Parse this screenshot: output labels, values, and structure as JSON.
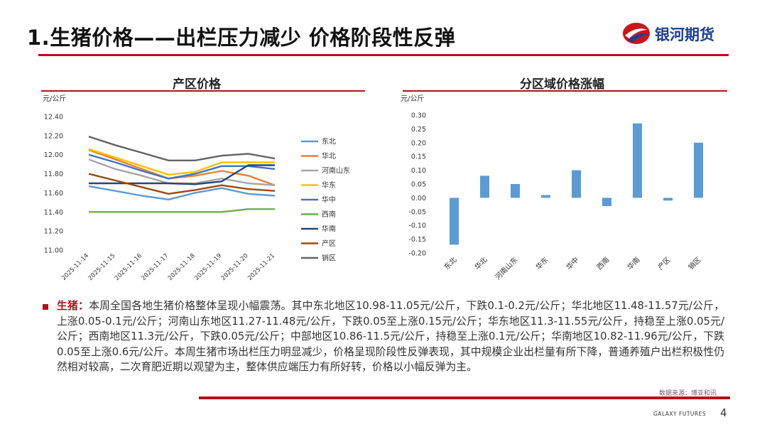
{
  "header": {
    "title": "1.生猪价格——出栏压力减少 价格阶段性反弹",
    "logo_text": "银河期货"
  },
  "chart_data": [
    {
      "type": "line",
      "title": "产区价格",
      "ylabel": "元/公斤",
      "ylim": [
        11.0,
        12.4
      ],
      "yticks": [
        "11.00",
        "11.20",
        "11.40",
        "11.60",
        "11.80",
        "12.00",
        "12.20",
        "12.40"
      ],
      "grid": false,
      "legend_position": "right",
      "x": [
        "2025-11-14",
        "2025-11-15",
        "2025-11-16",
        "2025-11-17",
        "2025-11-18",
        "2025-11-19",
        "2025-11-20",
        "2025-11-21"
      ],
      "series": [
        {
          "name": "东北",
          "color": "#5b9bd5",
          "values": [
            11.67,
            11.62,
            11.57,
            11.53,
            11.6,
            11.65,
            11.59,
            11.57
          ]
        },
        {
          "name": "华北",
          "color": "#ed7d31",
          "values": [
            12.05,
            11.95,
            11.85,
            11.75,
            11.78,
            11.83,
            11.78,
            11.68
          ]
        },
        {
          "name": "河南山东",
          "color": "#a5a5a5",
          "values": [
            11.95,
            11.85,
            11.78,
            11.7,
            11.7,
            11.75,
            11.7,
            11.68
          ]
        },
        {
          "name": "华东",
          "color": "#ffc000",
          "values": [
            12.06,
            11.97,
            11.88,
            11.79,
            11.82,
            11.92,
            11.92,
            11.92
          ]
        },
        {
          "name": "华中",
          "color": "#4472c4",
          "values": [
            12.0,
            11.92,
            11.83,
            11.75,
            11.8,
            11.88,
            11.88,
            11.85
          ]
        },
        {
          "name": "西南",
          "color": "#70ad47",
          "values": [
            11.4,
            11.4,
            11.4,
            11.4,
            11.4,
            11.4,
            11.43,
            11.43
          ]
        },
        {
          "name": "华南",
          "color": "#264478",
          "values": [
            11.7,
            11.7,
            11.7,
            11.7,
            11.69,
            11.72,
            11.89,
            11.89
          ]
        },
        {
          "name": "产区",
          "color": "#9e480e",
          "values": [
            11.8,
            11.73,
            11.66,
            11.59,
            11.63,
            11.68,
            11.64,
            11.62
          ]
        },
        {
          "name": "销区",
          "color": "#636363",
          "values": [
            12.19,
            12.1,
            12.02,
            11.94,
            11.94,
            11.99,
            12.01,
            11.96
          ]
        }
      ]
    },
    {
      "type": "bar",
      "title": "分区域价格涨幅",
      "ylabel": "元/公斤",
      "ylim": [
        -0.2,
        0.3
      ],
      "yticks": [
        "-0.20",
        "-0.15",
        "-0.10",
        "-0.05",
        "0.00",
        "0.05",
        "0.10",
        "0.15",
        "0.20",
        "0.25",
        "0.30"
      ],
      "grid": false,
      "color": "#5b9bd5",
      "categories": [
        "东北",
        "华北",
        "河南山东",
        "华东",
        "华中",
        "西南",
        "华南",
        "产区",
        "销区"
      ],
      "values": [
        -0.17,
        0.08,
        0.05,
        0.01,
        0.1,
        -0.03,
        0.27,
        -0.01,
        0.2
      ]
    }
  ],
  "analysis": {
    "label": "生猪：",
    "text": "本周全国各地生猪价格整体呈现小幅震荡。其中东北地区10.98-11.05元/公斤，下跌0.1-0.2元/公斤；华北地区11.48-11.57元/公斤，上涨0.05-0.1元/公斤；河南山东地区11.27-11.48元/公斤，下跌0.05至上涨0.15元/公斤；华东地区11.3-11.55元/公斤，持稳至上涨0.05元/公斤；西南地区11.3元/公斤，下跌0.05元/公斤；中部地区10.86-11.5元/公斤，持稳至上涨0.1元/公斤；华南地区10.82-11.96元/公斤，下跌0.05至上涨0.6元/公斤。本周生猪市场出栏压力明显减少，价格呈现阶段性反弹表现，其中规模企业出栏量有所下降，普通养殖户出栏积极性仍然相对较高，二次育肥近期以观望为主，整体供应端压力有所好转，价格以小幅反弹为主。"
  },
  "footer": {
    "source": "数据来源：博亚和讯",
    "brand_en": "GALAXY FUTURES",
    "page": "4"
  }
}
